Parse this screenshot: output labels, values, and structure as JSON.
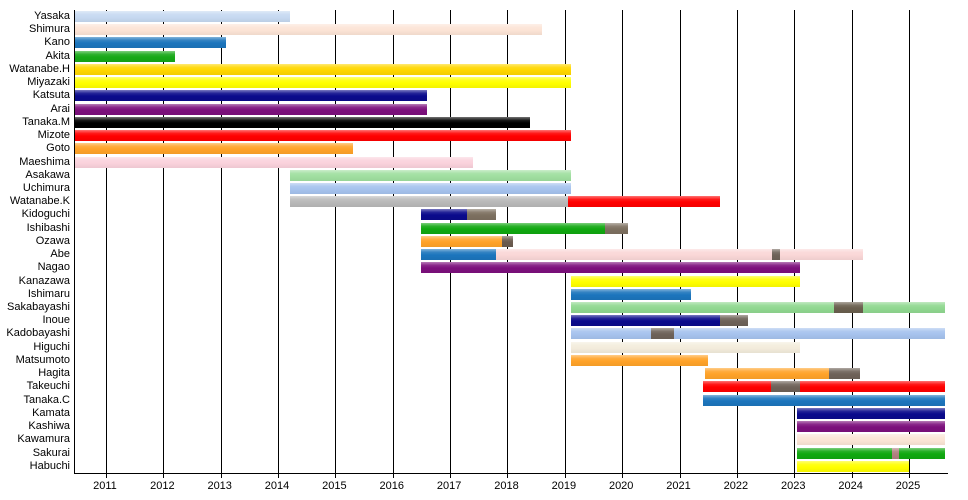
{
  "chart_data": {
    "type": "gantt-bar",
    "title": "",
    "xlabel": "",
    "ylabel": "",
    "grid": "vertical-yearly",
    "legend": "none",
    "x_axis": {
      "min": 2010.46,
      "max": 2025.68,
      "ticks": [
        2011,
        2012,
        2013,
        2014,
        2015,
        2016,
        2017,
        2018,
        2019,
        2020,
        2021,
        2022,
        2023,
        2024,
        2025
      ],
      "tick_labels": [
        "2011",
        "2012",
        "2013",
        "2014",
        "2015",
        "2016",
        "2017",
        "2018",
        "2019",
        "2020",
        "2021",
        "2022",
        "2023",
        "2024",
        "2025"
      ]
    },
    "rows": [
      {
        "label": "Yasaka",
        "segments": [
          {
            "start": 2010.46,
            "end": 2014.2,
            "color": "#c6d9f1"
          }
        ]
      },
      {
        "label": "Shimura",
        "segments": [
          {
            "start": 2010.46,
            "end": 2018.6,
            "color": "#fce4d6"
          }
        ]
      },
      {
        "label": "Kano",
        "segments": [
          {
            "start": 2010.46,
            "end": 2013.1,
            "color": "#1c75bc"
          }
        ]
      },
      {
        "label": "Akita",
        "segments": [
          {
            "start": 2010.46,
            "end": 2012.2,
            "color": "#17a817"
          }
        ]
      },
      {
        "label": "Watanabe.H",
        "segments": [
          {
            "start": 2010.46,
            "end": 2019.1,
            "color": "#ffd700"
          }
        ]
      },
      {
        "label": "Miyazaki",
        "segments": [
          {
            "start": 2010.46,
            "end": 2019.1,
            "color": "#ffff00"
          }
        ]
      },
      {
        "label": "Katsuta",
        "segments": [
          {
            "start": 2010.46,
            "end": 2016.6,
            "color": "#0a0a8c"
          }
        ]
      },
      {
        "label": "Arai",
        "segments": [
          {
            "start": 2010.46,
            "end": 2016.6,
            "color": "#7d107d"
          }
        ]
      },
      {
        "label": "Tanaka.M",
        "segments": [
          {
            "start": 2010.46,
            "end": 2018.4,
            "color": "#000000"
          }
        ]
      },
      {
        "label": "Mizote",
        "segments": [
          {
            "start": 2010.46,
            "end": 2019.1,
            "color": "#ff0000"
          }
        ]
      },
      {
        "label": "Goto",
        "segments": [
          {
            "start": 2010.46,
            "end": 2015.3,
            "color": "#ffa329"
          }
        ]
      },
      {
        "label": "Maeshima",
        "segments": [
          {
            "start": 2010.46,
            "end": 2017.4,
            "color": "#fad2dc"
          }
        ]
      },
      {
        "label": "Asakawa",
        "segments": [
          {
            "start": 2014.2,
            "end": 2019.1,
            "color": "#a0dfa0"
          }
        ]
      },
      {
        "label": "Uchimura",
        "segments": [
          {
            "start": 2014.2,
            "end": 2019.1,
            "color": "#a6c3ee"
          }
        ]
      },
      {
        "label": "Watanabe.K",
        "segments": [
          {
            "start": 2014.2,
            "end": 2019.05,
            "color": "#b9b9b9"
          },
          {
            "start": 2019.05,
            "end": 2021.7,
            "color": "#ff0000"
          }
        ]
      },
      {
        "label": "Kidoguchi",
        "segments": [
          {
            "start": 2016.5,
            "end": 2017.3,
            "color": "#0a0a8c"
          },
          {
            "start": 2017.3,
            "end": 2017.8,
            "color": "#7d7060"
          }
        ]
      },
      {
        "label": "Ishibashi",
        "segments": [
          {
            "start": 2016.5,
            "end": 2019.7,
            "color": "#10a810"
          },
          {
            "start": 2019.7,
            "end": 2020.1,
            "color": "#7d7060"
          }
        ]
      },
      {
        "label": "Ozawa",
        "segments": [
          {
            "start": 2016.5,
            "end": 2017.9,
            "color": "#ffa329"
          },
          {
            "start": 2017.9,
            "end": 2018.1,
            "color": "#6b5b4f"
          }
        ]
      },
      {
        "label": "Abe",
        "segments": [
          {
            "start": 2016.5,
            "end": 2017.8,
            "color": "#1c75bc"
          },
          {
            "start": 2017.8,
            "end": 2022.62,
            "color": "#fad7d7"
          },
          {
            "start": 2022.62,
            "end": 2022.75,
            "color": "#6e6258"
          },
          {
            "start": 2022.75,
            "end": 2024.2,
            "color": "#fad7d7"
          }
        ]
      },
      {
        "label": "Nagao",
        "segments": [
          {
            "start": 2016.5,
            "end": 2023.1,
            "color": "#7d107d"
          }
        ]
      },
      {
        "label": "Kanazawa",
        "segments": [
          {
            "start": 2019.1,
            "end": 2023.1,
            "color": "#ffff00"
          }
        ]
      },
      {
        "label": "Ishimaru",
        "segments": [
          {
            "start": 2019.1,
            "end": 2021.2,
            "color": "#1c75bc"
          }
        ]
      },
      {
        "label": "Sakabayashi",
        "segments": [
          {
            "start": 2019.1,
            "end": 2023.7,
            "color": "#90d890"
          },
          {
            "start": 2023.7,
            "end": 2024.2,
            "color": "#6a5f4e"
          },
          {
            "start": 2024.2,
            "end": 2025.63,
            "color": "#90d890"
          }
        ]
      },
      {
        "label": "Inoue",
        "segments": [
          {
            "start": 2019.1,
            "end": 2021.7,
            "color": "#0a0a8c"
          },
          {
            "start": 2021.7,
            "end": 2022.2,
            "color": "#6e6258"
          }
        ]
      },
      {
        "label": "Kadobayashi",
        "segments": [
          {
            "start": 2019.1,
            "end": 2020.5,
            "color": "#a6c3ee"
          },
          {
            "start": 2020.5,
            "end": 2020.9,
            "color": "#6e6258"
          },
          {
            "start": 2020.9,
            "end": 2025.63,
            "color": "#a6c3ee"
          }
        ]
      },
      {
        "label": "Higuchi",
        "segments": [
          {
            "start": 2019.1,
            "end": 2023.1,
            "color": "#f3ecdc"
          }
        ]
      },
      {
        "label": "Matsumoto",
        "segments": [
          {
            "start": 2019.1,
            "end": 2021.5,
            "color": "#ffa329"
          }
        ]
      },
      {
        "label": "Hagita",
        "segments": [
          {
            "start": 2021.45,
            "end": 2023.6,
            "color": "#ffa329"
          },
          {
            "start": 2023.6,
            "end": 2024.15,
            "color": "#6e6258"
          }
        ]
      },
      {
        "label": "Takeuchi",
        "segments": [
          {
            "start": 2021.4,
            "end": 2022.6,
            "color": "#ff0000"
          },
          {
            "start": 2022.6,
            "end": 2023.1,
            "color": "#6e6258"
          },
          {
            "start": 2023.1,
            "end": 2025.62,
            "color": "#ff0000"
          }
        ]
      },
      {
        "label": "Tanaka.C",
        "segments": [
          {
            "start": 2021.4,
            "end": 2025.62,
            "color": "#1c75bc"
          }
        ]
      },
      {
        "label": "Kamata",
        "segments": [
          {
            "start": 2023.05,
            "end": 2025.62,
            "color": "#0a0a8c"
          }
        ]
      },
      {
        "label": "Kashiwa",
        "segments": [
          {
            "start": 2023.05,
            "end": 2025.62,
            "color": "#7d107d"
          }
        ]
      },
      {
        "label": "Kawamura",
        "segments": [
          {
            "start": 2023.05,
            "end": 2025.62,
            "color": "#fbe5d6"
          }
        ]
      },
      {
        "label": "Sakurai",
        "segments": [
          {
            "start": 2023.05,
            "end": 2024.7,
            "color": "#10a810"
          },
          {
            "start": 2024.7,
            "end": 2024.82,
            "color": "#b08080"
          },
          {
            "start": 2024.82,
            "end": 2025.62,
            "color": "#10a810"
          }
        ]
      },
      {
        "label": "Habuchi",
        "segments": [
          {
            "start": 2023.05,
            "end": 2025.0,
            "color": "#ffff00"
          }
        ]
      }
    ]
  }
}
